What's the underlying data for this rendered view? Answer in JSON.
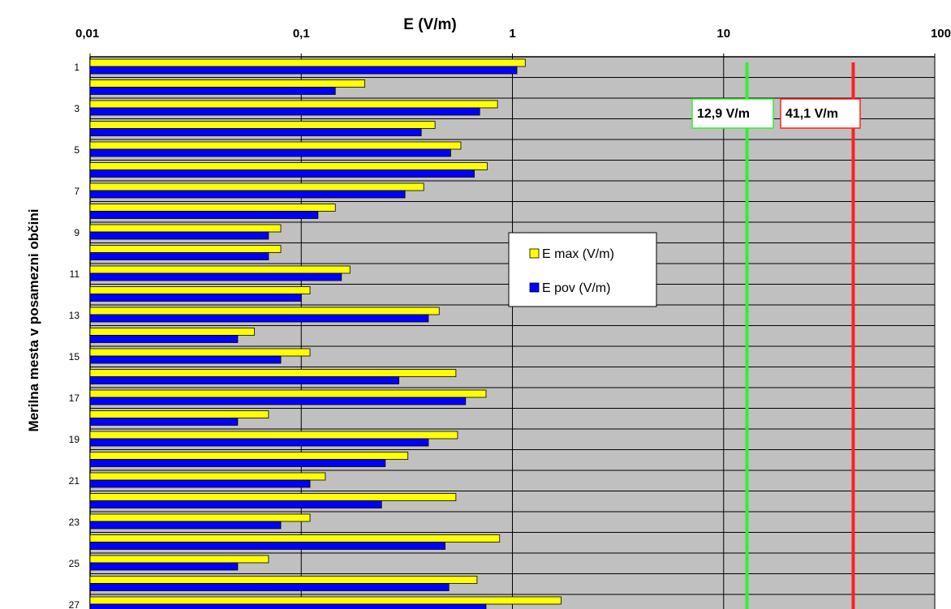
{
  "chart_data": {
    "type": "bar",
    "orientation": "horizontal",
    "x_scale": "log",
    "xlim": [
      0.01,
      100
    ],
    "x_ticks": [
      "0,01",
      "0,1",
      "1",
      "10",
      "100"
    ],
    "xlabel": "E (V/m)",
    "ylabel": "Merilna mesta v posamezni občini",
    "y_tick_labels": [
      "1",
      "3",
      "5",
      "7",
      "9",
      "11",
      "13",
      "15",
      "17",
      "19",
      "21",
      "23",
      "25",
      "27"
    ],
    "grid": true,
    "legend_position": "center",
    "categories": [
      1,
      2,
      3,
      4,
      5,
      6,
      7,
      8,
      9,
      10,
      11,
      12,
      13,
      14,
      15,
      16,
      17,
      18,
      19,
      20,
      21,
      22,
      23,
      24,
      25,
      26,
      27
    ],
    "series": [
      {
        "name": "E max (V/m)",
        "color": "#ffff00",
        "values": [
          1.15,
          0.2,
          0.85,
          0.43,
          0.57,
          0.76,
          0.38,
          0.145,
          0.08,
          0.08,
          0.17,
          0.11,
          0.45,
          0.06,
          0.11,
          0.54,
          0.75,
          0.07,
          0.55,
          0.32,
          0.13,
          0.54,
          0.11,
          0.87,
          0.07,
          0.68,
          1.7
        ]
      },
      {
        "name": "E pov (V/m)",
        "color": "#0000ff",
        "values": [
          1.05,
          0.145,
          0.7,
          0.37,
          0.51,
          0.66,
          0.31,
          0.12,
          0.07,
          0.07,
          0.155,
          0.1,
          0.4,
          0.05,
          0.08,
          0.29,
          0.6,
          0.05,
          0.4,
          0.25,
          0.11,
          0.24,
          0.08,
          0.48,
          0.05,
          0.5,
          0.75
        ]
      }
    ],
    "reference_lines": [
      {
        "value": 12.9,
        "label": "12,9 V/m",
        "color": "#33ee33"
      },
      {
        "value": 41.1,
        "label": "41,1 V/m",
        "color": "#ff2020"
      }
    ],
    "plot_background": "#c0c0c0"
  }
}
